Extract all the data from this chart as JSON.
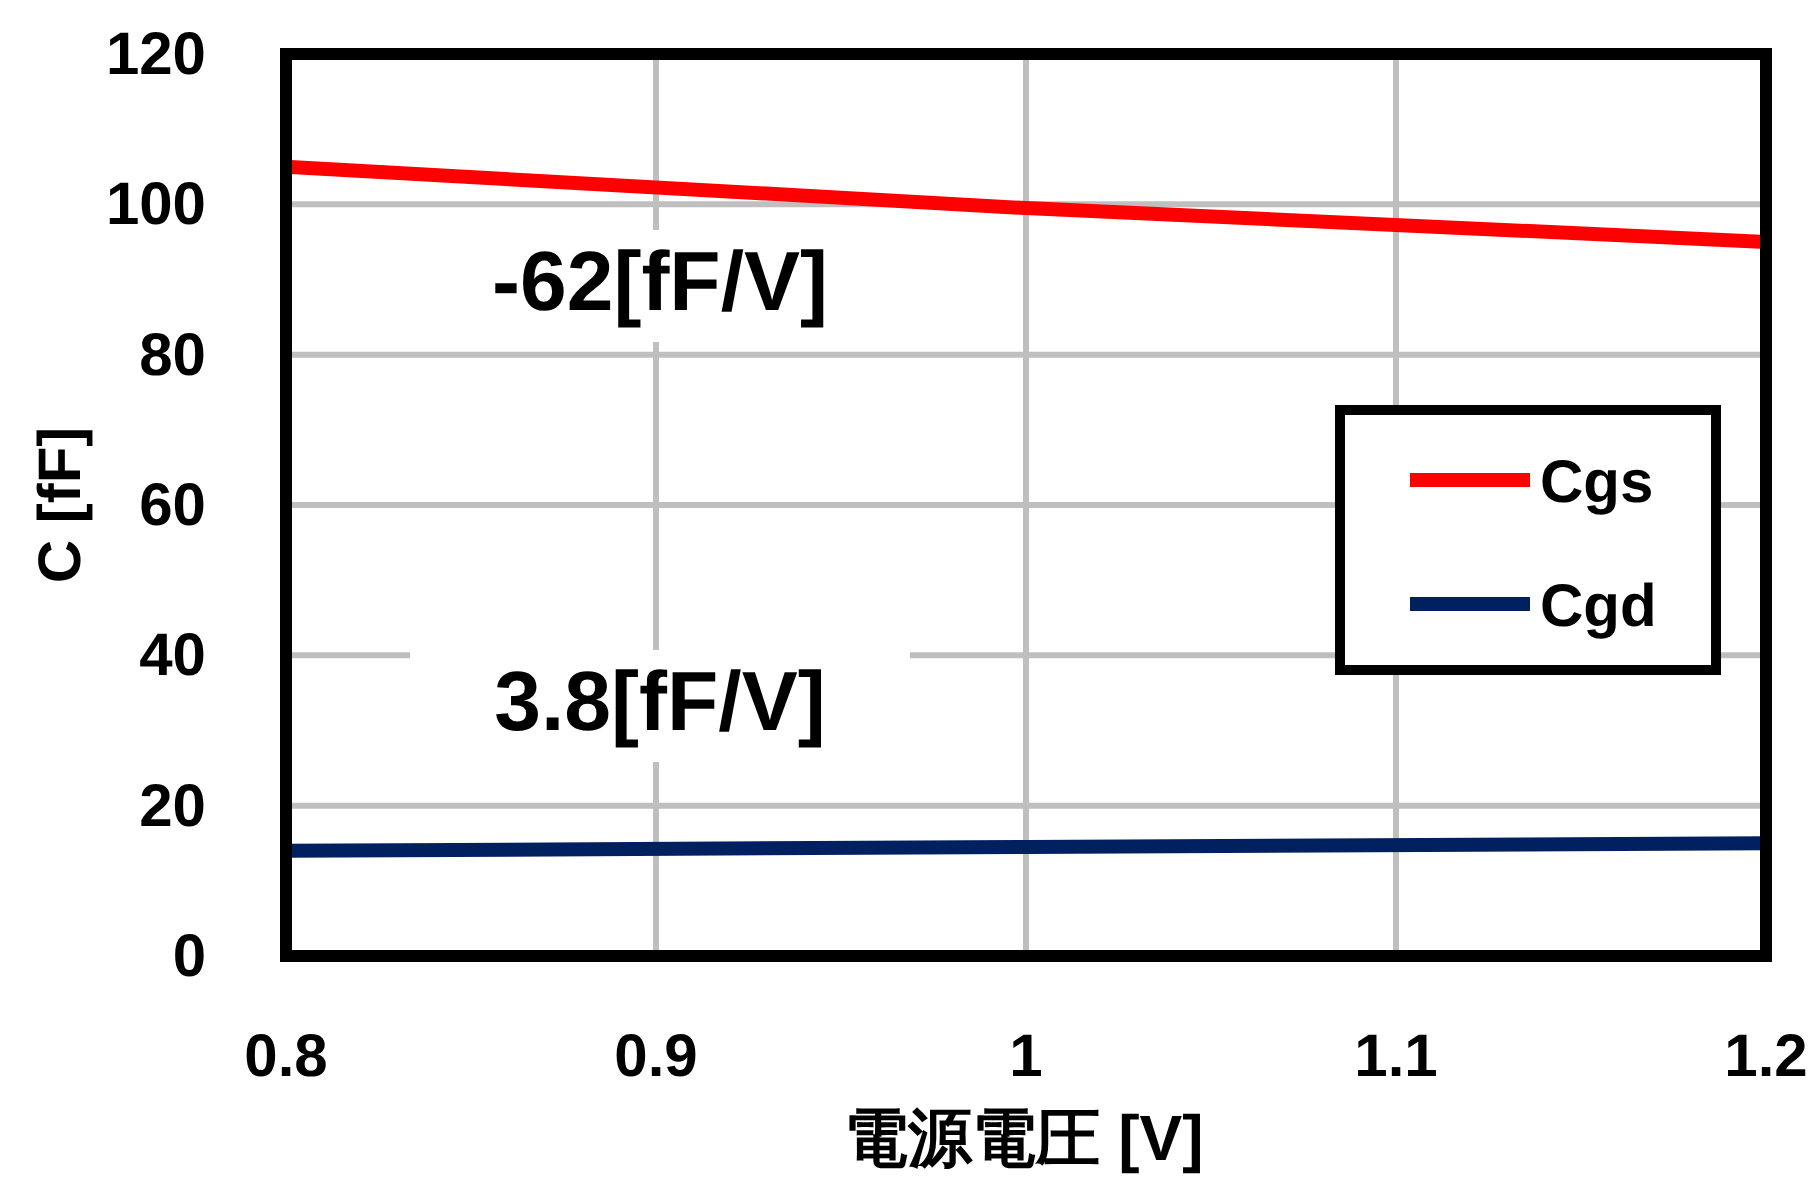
{
  "chart_data": {
    "type": "line",
    "xlabel": "電源電圧 [V]",
    "ylabel": "C [fF]",
    "x": [
      0.8,
      1.0,
      1.2
    ],
    "series": [
      {
        "name": "Cgs",
        "color": "#ff0000",
        "values": [
          105,
          99.5,
          95
        ]
      },
      {
        "name": "Cgd",
        "color": "#002060",
        "values": [
          14,
          14.5,
          15
        ]
      }
    ],
    "xlim": [
      0.8,
      1.2
    ],
    "xticks": [
      0.8,
      0.9,
      {
        "value": 1.0,
        "label": "1"
      },
      1.1,
      1.2
    ],
    "ylim": [
      0,
      120
    ],
    "yticks": [
      0,
      20,
      40,
      60,
      80,
      100,
      120
    ],
    "annotations": [
      "-62[fF/V]",
      "3.8[fF/V]"
    ],
    "grid": true,
    "legend": "right",
    "marker": "none",
    "line_style": "solid"
  }
}
